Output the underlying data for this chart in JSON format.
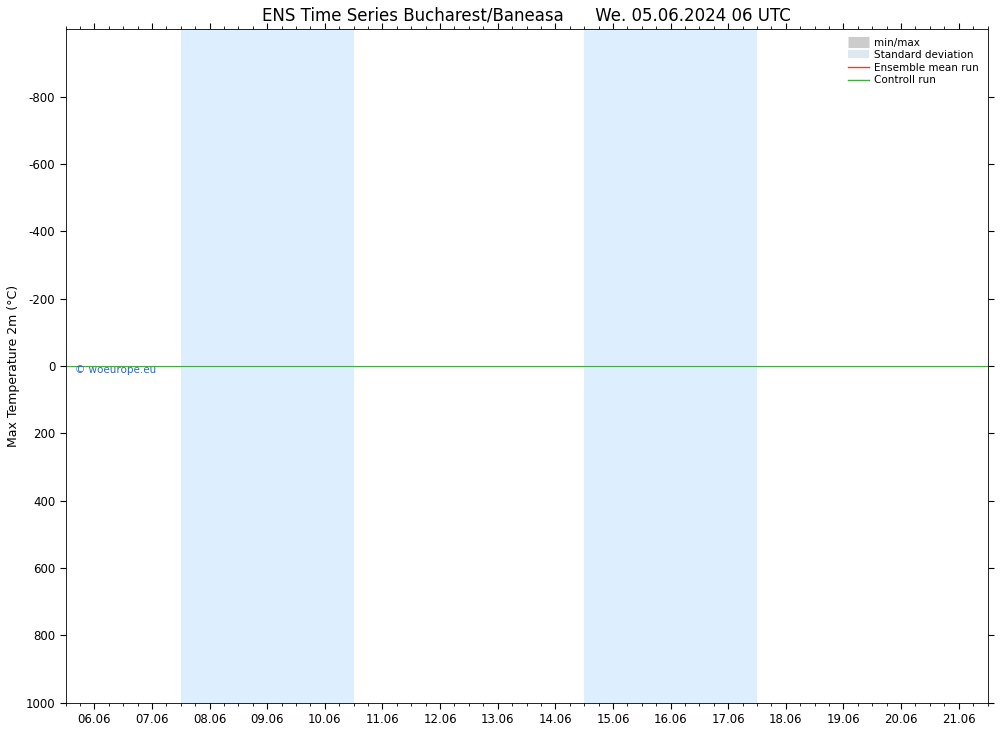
{
  "title": "ENS Time Series Bucharest/Baneasa      We. 05.06.2024 06 UTC",
  "ylabel": "Max Temperature 2m (°C)",
  "xlabel_ticks": [
    "06.06",
    "07.06",
    "08.06",
    "09.06",
    "10.06",
    "11.06",
    "12.06",
    "13.06",
    "14.06",
    "15.06",
    "16.06",
    "17.06",
    "18.06",
    "19.06",
    "20.06",
    "21.06"
  ],
  "x_tick_positions": [
    0,
    1,
    2,
    3,
    4,
    5,
    6,
    7,
    8,
    9,
    10,
    11,
    12,
    13,
    14,
    15
  ],
  "ylim_top": -1000,
  "ylim_bottom": 1000,
  "yticks": [
    -800,
    -600,
    -400,
    -200,
    0,
    200,
    400,
    600,
    800,
    1000
  ],
  "hline_y": 0,
  "shaded_bands": [
    [
      1.85,
      2.15
    ],
    [
      2.85,
      3.15
    ],
    [
      8.85,
      9.15
    ],
    [
      9.85,
      10.15
    ]
  ],
  "band_color": "#ddeeff",
  "background_color": "#ffffff",
  "plot_bg_color": "#ffffff",
  "hline_color": "#44aa44",
  "legend_items": [
    {
      "label": "min/max",
      "color": "#cccccc",
      "linewidth": 8,
      "linestyle": "-"
    },
    {
      "label": "Standard deviation",
      "color": "#dde8f0",
      "linewidth": 6,
      "linestyle": "-"
    },
    {
      "label": "Ensemble mean run",
      "color": "#ff3333",
      "linewidth": 1.0,
      "linestyle": "-"
    },
    {
      "label": "Controll run",
      "color": "#44aa44",
      "linewidth": 1.0,
      "linestyle": "-"
    }
  ],
  "copyright_text": "© woeurope.eu",
  "copyright_color": "#3366bb",
  "title_fontsize": 12,
  "tick_fontsize": 8.5,
  "ylabel_fontsize": 9
}
